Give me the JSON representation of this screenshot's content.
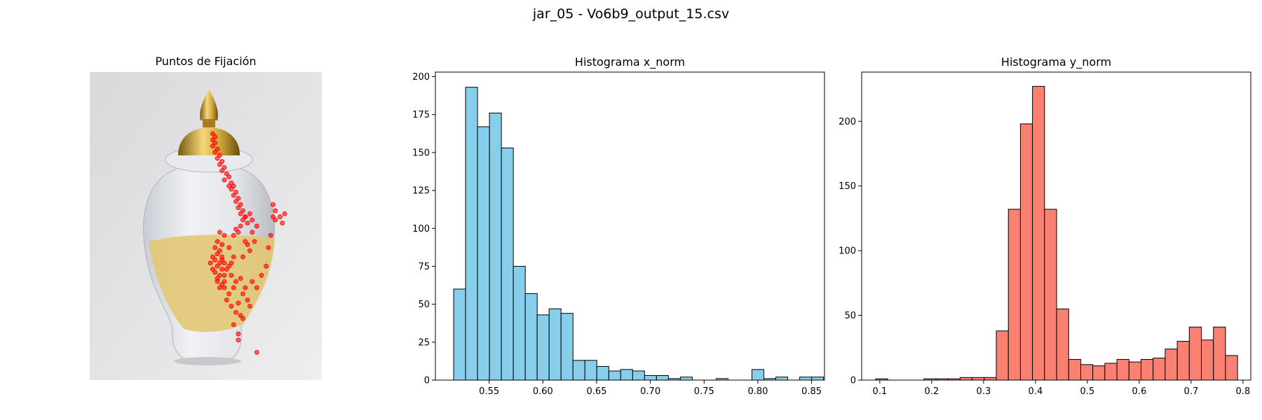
{
  "suptitle": "jar_05 - Vo6b9_output_15.csv",
  "colors": {
    "hist_x": "#87ceeb",
    "hist_y": "#fa8072",
    "fixation": "#ff0000",
    "edge": "#000000"
  },
  "chart_data": [
    {
      "type": "scatter",
      "title": "Puntos de Fijación",
      "background": "photo of a white ceramic ginger jar with gold lid, gold finial and gold brush-stroke band",
      "axes_visible": false,
      "points_note": "fixation points overlaid on image, dense vertical trail from lid down the shoulder, large cluster on left gold band, a few outliers right and bottom",
      "x_units": "normalized image x (0-1)",
      "y_units": "normalized image y (0-1, top=0)",
      "points": [
        [
          0.53,
          0.2
        ],
        [
          0.54,
          0.21
        ],
        [
          0.53,
          0.22
        ],
        [
          0.54,
          0.23
        ],
        [
          0.53,
          0.24
        ],
        [
          0.55,
          0.25
        ],
        [
          0.54,
          0.26
        ],
        [
          0.56,
          0.27
        ],
        [
          0.55,
          0.28
        ],
        [
          0.57,
          0.29
        ],
        [
          0.56,
          0.3
        ],
        [
          0.58,
          0.31
        ],
        [
          0.57,
          0.32
        ],
        [
          0.59,
          0.33
        ],
        [
          0.6,
          0.34
        ],
        [
          0.58,
          0.35
        ],
        [
          0.61,
          0.36
        ],
        [
          0.6,
          0.37
        ],
        [
          0.62,
          0.37
        ],
        [
          0.61,
          0.38
        ],
        [
          0.63,
          0.39
        ],
        [
          0.62,
          0.4
        ],
        [
          0.64,
          0.41
        ],
        [
          0.63,
          0.42
        ],
        [
          0.65,
          0.43
        ],
        [
          0.64,
          0.44
        ],
        [
          0.66,
          0.45
        ],
        [
          0.65,
          0.46
        ],
        [
          0.67,
          0.47
        ],
        [
          0.66,
          0.48
        ],
        [
          0.68,
          0.49
        ],
        [
          0.65,
          0.5
        ],
        [
          0.63,
          0.51
        ],
        [
          0.64,
          0.52
        ],
        [
          0.62,
          0.53
        ],
        [
          0.67,
          0.47
        ],
        [
          0.69,
          0.46
        ],
        [
          0.7,
          0.48
        ],
        [
          0.72,
          0.5
        ],
        [
          0.7,
          0.52
        ],
        [
          0.71,
          0.55
        ],
        [
          0.68,
          0.56
        ],
        [
          0.69,
          0.58
        ],
        [
          0.66,
          0.6
        ],
        [
          0.67,
          0.55
        ],
        [
          0.79,
          0.43
        ],
        [
          0.8,
          0.45
        ],
        [
          0.79,
          0.47
        ],
        [
          0.8,
          0.48
        ],
        [
          0.82,
          0.47
        ],
        [
          0.84,
          0.46
        ],
        [
          0.83,
          0.49
        ],
        [
          0.78,
          0.53
        ],
        [
          0.77,
          0.57
        ],
        [
          0.56,
          0.52
        ],
        [
          0.58,
          0.53
        ],
        [
          0.55,
          0.55
        ],
        [
          0.57,
          0.56
        ],
        [
          0.54,
          0.57
        ],
        [
          0.56,
          0.58
        ],
        [
          0.55,
          0.59
        ],
        [
          0.57,
          0.6
        ],
        [
          0.54,
          0.61
        ],
        [
          0.56,
          0.62
        ],
        [
          0.55,
          0.63
        ],
        [
          0.57,
          0.64
        ],
        [
          0.54,
          0.65
        ],
        [
          0.56,
          0.66
        ],
        [
          0.55,
          0.67
        ],
        [
          0.57,
          0.61
        ],
        [
          0.58,
          0.62
        ],
        [
          0.53,
          0.6
        ],
        [
          0.52,
          0.62
        ],
        [
          0.53,
          0.64
        ],
        [
          0.58,
          0.66
        ],
        [
          0.59,
          0.64
        ],
        [
          0.6,
          0.63
        ],
        [
          0.61,
          0.62
        ],
        [
          0.62,
          0.6
        ],
        [
          0.6,
          0.57
        ],
        [
          0.61,
          0.66
        ],
        [
          0.63,
          0.68
        ],
        [
          0.62,
          0.7
        ],
        [
          0.65,
          0.67
        ],
        [
          0.67,
          0.7
        ],
        [
          0.66,
          0.72
        ],
        [
          0.7,
          0.68
        ],
        [
          0.68,
          0.74
        ],
        [
          0.64,
          0.75
        ],
        [
          0.6,
          0.72
        ],
        [
          0.58,
          0.7
        ],
        [
          0.59,
          0.74
        ],
        [
          0.61,
          0.76
        ],
        [
          0.63,
          0.78
        ],
        [
          0.65,
          0.79
        ],
        [
          0.62,
          0.82
        ],
        [
          0.64,
          0.85
        ],
        [
          0.64,
          0.87
        ],
        [
          0.66,
          0.8
        ],
        [
          0.69,
          0.76
        ],
        [
          0.72,
          0.7
        ],
        [
          0.76,
          0.63
        ],
        [
          0.74,
          0.66
        ],
        [
          0.55,
          0.68
        ],
        [
          0.57,
          0.69
        ],
        [
          0.56,
          0.7
        ],
        [
          0.58,
          0.68
        ],
        [
          0.72,
          0.91
        ]
      ]
    },
    {
      "type": "bar",
      "title": "Histograma x_norm",
      "xlim": [
        0.5,
        0.862
      ],
      "ylim": [
        0,
        203
      ],
      "bin_start": 0.517,
      "bin_width": 0.0111,
      "values": [
        60,
        193,
        167,
        176,
        153,
        75,
        57,
        43,
        47,
        44,
        13,
        13,
        9,
        6,
        7,
        6,
        3,
        3,
        1,
        2,
        0,
        0,
        1,
        0,
        0,
        7,
        1,
        2,
        0,
        2,
        2
      ],
      "xticks": [
        "0.55",
        "0.60",
        "0.65",
        "0.70",
        "0.75",
        "0.80",
        "0.85"
      ],
      "xtick_values": [
        0.55,
        0.6,
        0.65,
        0.7,
        0.75,
        0.8,
        0.85
      ],
      "yticks": [
        "0",
        "25",
        "50",
        "75",
        "100",
        "125",
        "150",
        "175",
        "200"
      ],
      "ytick_values": [
        0,
        25,
        50,
        75,
        100,
        125,
        150,
        175,
        200
      ]
    },
    {
      "type": "bar",
      "title": "Histograma y_norm",
      "xlim": [
        0.065,
        0.815
      ],
      "ylim": [
        0,
        238
      ],
      "bin_start": 0.092,
      "bin_width": 0.02325,
      "values": [
        1,
        0,
        0,
        0,
        1,
        1,
        1,
        2,
        2,
        2,
        38,
        132,
        198,
        227,
        132,
        55,
        16,
        12,
        11,
        13,
        16,
        14,
        16,
        17,
        24,
        30,
        41,
        31,
        41,
        19
      ],
      "xticks": [
        "0.1",
        "0.2",
        "0.3",
        "0.4",
        "0.5",
        "0.6",
        "0.7",
        "0.8"
      ],
      "xtick_values": [
        0.1,
        0.2,
        0.3,
        0.4,
        0.5,
        0.6,
        0.7,
        0.8
      ],
      "yticks": [
        "0",
        "50",
        "100",
        "150",
        "200"
      ],
      "ytick_values": [
        0,
        50,
        100,
        150,
        200
      ]
    }
  ]
}
